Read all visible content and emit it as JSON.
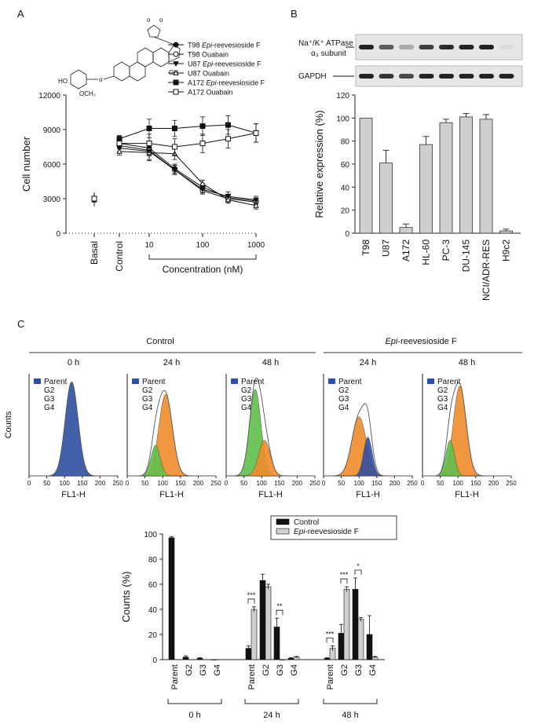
{
  "panel_labels": [
    "A",
    "B",
    "C"
  ],
  "colors": {
    "black": "#111111",
    "gray_bar": "#cfcfcf",
    "blue": "#2f4fa2",
    "orange": "#f08c2a",
    "green": "#5fbf4a"
  },
  "chart_data": [
    {
      "id": "A",
      "type": "line",
      "ylabel": "Cell number",
      "xlabel": "Concentration (nM)",
      "x_log_scale": true,
      "ylim": [
        0,
        12000
      ],
      "yticks": [
        "0",
        "3000",
        "6000",
        "9000",
        "12000"
      ],
      "xticks": [
        "10",
        "100",
        "1000"
      ],
      "category_labels": [
        "Basal",
        "Control"
      ],
      "x": [
        10,
        30,
        100,
        300,
        1000
      ],
      "series": [
        {
          "name": "T98 Epi-reevesioside F",
          "marker": "filled-circle",
          "basal": 3000,
          "control": 7800,
          "values": [
            7400,
            5600,
            4000,
            3100,
            2800
          ],
          "errors": [
            600,
            400,
            300,
            300,
            200
          ]
        },
        {
          "name": "T98 Ouabain",
          "marker": "open-circle",
          "basal": 2900,
          "control": 7600,
          "values": [
            7200,
            5500,
            3700,
            3000,
            2700
          ],
          "errors": [
            500,
            400,
            300,
            300,
            200
          ]
        },
        {
          "name": "U87 Epi-reevesioside F",
          "marker": "filled-triangle-down",
          "basal": 3000,
          "control": 7400,
          "values": [
            7100,
            5500,
            3800,
            3200,
            2900
          ],
          "errors": [
            700,
            400,
            300,
            400,
            300
          ]
        },
        {
          "name": "U87 Ouabain",
          "marker": "open-triangle-up",
          "basal": 2900,
          "control": 7100,
          "values": [
            7000,
            6900,
            4300,
            2900,
            2400
          ],
          "errors": [
            700,
            500,
            300,
            300,
            300
          ]
        },
        {
          "name": "A172 Epi-reevesioside F",
          "marker": "filled-square",
          "basal": 3000,
          "control": 8200,
          "values": [
            9100,
            9100,
            9300,
            9400,
            8700
          ],
          "errors": [
            800,
            700,
            800,
            800,
            800
          ]
        },
        {
          "name": "A172 Ouabain",
          "marker": "open-square",
          "basal": 3000,
          "control": 7800,
          "values": [
            7800,
            7500,
            7800,
            8200,
            8700
          ],
          "errors": [
            800,
            700,
            800,
            800,
            800
          ]
        }
      ]
    },
    {
      "id": "B",
      "type": "bar",
      "ylabel": "Relative expression (%)",
      "ylim": [
        0,
        120
      ],
      "yticks": [
        "0",
        "20",
        "40",
        "60",
        "80",
        "100",
        "120"
      ],
      "categories": [
        "T98",
        "U87",
        "A172",
        "HL-60",
        "PC-3",
        "DU-145",
        "NCI/ADR-RES",
        "H9c2"
      ],
      "values": [
        100,
        61,
        5,
        77,
        96,
        101,
        99,
        2
      ],
      "errors": [
        0,
        11,
        3,
        7,
        3,
        3,
        4,
        1.5
      ],
      "blot_labels": {
        "band1_line1": "Na⁺/K⁺ ATPase",
        "band1_line2": "α₃ subunit",
        "band2": "GAPDH"
      }
    },
    {
      "id": "C-histograms",
      "type": "area",
      "group_labels": [
        "Control",
        "Epi-reevesioside F"
      ],
      "time_labels": [
        "0 h",
        "24 h",
        "48 h",
        "24 h",
        "48 h"
      ],
      "legend": [
        "Parent",
        "G2",
        "G3",
        "G4"
      ],
      "ylabel": "Counts",
      "xlabel": "FL1-H",
      "xticks": [
        "0",
        "50",
        "100",
        "150",
        "200",
        "250"
      ],
      "xlim": [
        0,
        250
      ],
      "panels": [
        {
          "group": "Control",
          "time": "0 h",
          "peaks": [
            {
              "gen": "Parent",
              "mu": 120,
              "sd": 18,
              "h": 0.92
            }
          ]
        },
        {
          "group": "Control",
          "time": "24 h",
          "peaks": [
            {
              "gen": "G2",
              "mu": 108,
              "sd": 19,
              "h": 0.8
            },
            {
              "gen": "G3",
              "mu": 80,
              "sd": 13,
              "h": 0.3
            }
          ]
        },
        {
          "group": "Control",
          "time": "48 h",
          "peaks": [
            {
              "gen": "G3",
              "mu": 82,
              "sd": 16,
              "h": 0.85
            },
            {
              "gen": "G2",
              "mu": 108,
              "sd": 16,
              "h": 0.35
            }
          ]
        },
        {
          "group": "Epi-reevesioside F",
          "time": "24 h",
          "peaks": [
            {
              "gen": "G2",
              "mu": 100,
              "sd": 20,
              "h": 0.58
            },
            {
              "gen": "Parent",
              "mu": 125,
              "sd": 12,
              "h": 0.38
            }
          ]
        },
        {
          "group": "Epi-reevesioside F",
          "time": "48 h",
          "peaks": [
            {
              "gen": "G2",
              "mu": 105,
              "sd": 18,
              "h": 0.88
            },
            {
              "gen": "G3",
              "mu": 78,
              "sd": 12,
              "h": 0.35
            }
          ]
        }
      ]
    },
    {
      "id": "C-bars",
      "type": "bar",
      "ylabel": "Counts (%)",
      "ylim": [
        0,
        100
      ],
      "yticks": [
        "0",
        "20",
        "40",
        "60",
        "80",
        "100"
      ],
      "categories": [
        "Parent",
        "G2",
        "G3",
        "G4"
      ],
      "groups": [
        "0 h",
        "24 h",
        "48 h"
      ],
      "series": [
        {
          "name": "Control",
          "values": [
            [
              97,
              2,
              1,
              0
            ],
            [
              9,
              63,
              26,
              1
            ],
            [
              1,
              21,
              56,
              20
            ]
          ],
          "errors": [
            [
              1,
              1,
              0.5,
              0
            ],
            [
              2,
              5,
              7,
              0.5
            ],
            [
              0.5,
              7,
              9,
              15
            ]
          ]
        },
        {
          "name": "Epi-reevesioside F",
          "values": [
            [
              null,
              null,
              null,
              null
            ],
            [
              40,
              58,
              0,
              2
            ],
            [
              9,
              56,
              32,
              2
            ]
          ],
          "errors": [
            [
              0,
              0,
              0,
              0
            ],
            [
              2,
              2,
              0,
              0.5
            ],
            [
              2,
              2,
              1.5,
              0.5
            ]
          ]
        }
      ],
      "significance": [
        {
          "group": "24 h",
          "category": "Parent",
          "label": "***"
        },
        {
          "group": "24 h",
          "category": "G3",
          "label": "**"
        },
        {
          "group": "48 h",
          "category": "Parent",
          "label": "***"
        },
        {
          "group": "48 h",
          "category": "G2",
          "label": "***"
        },
        {
          "group": "48 h",
          "category": "G3",
          "label": "*"
        }
      ]
    }
  ]
}
